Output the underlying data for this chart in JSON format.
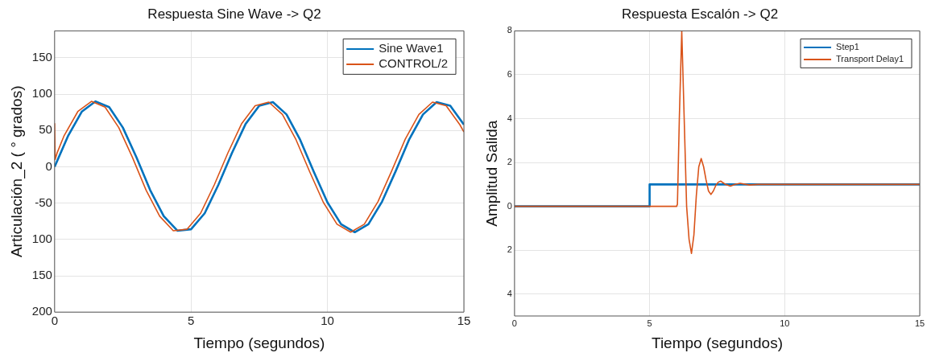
{
  "chart_data": [
    {
      "type": "line",
      "title": "Respuesta Sine Wave -> Q2",
      "xlabel": "Tiempo (segundos)",
      "ylabel": "Articulación_2 ( ° grados)",
      "xlim": [
        0,
        15
      ],
      "xticks": [
        0,
        5,
        10,
        15
      ],
      "ylim": [
        -200,
        187
      ],
      "yticks": [
        {
          "value": -200,
          "label": "200"
        },
        {
          "value": -150,
          "label": "150"
        },
        {
          "value": -100,
          "label": "100"
        },
        -50,
        0,
        50,
        100,
        150
      ],
      "grid": true,
      "legend": "top right",
      "marker": "none",
      "line_style": "solid",
      "series": [
        {
          "name": "Sine Wave1",
          "color": "#0072bd",
          "x": [
            0,
            0.5,
            1,
            1.5,
            2,
            2.5,
            3,
            3.5,
            4,
            4.5,
            5,
            5.5,
            6,
            6.5,
            7,
            7.5,
            8,
            8.5,
            9,
            9.5,
            10,
            10.5,
            11,
            11.5,
            12,
            12.5,
            13,
            13.5,
            14,
            14.5,
            15
          ],
          "values": [
            0,
            43,
            76,
            90,
            82,
            54,
            13,
            -32,
            -68,
            -88,
            -86,
            -64,
            -25,
            19,
            59,
            84,
            89,
            72,
            37,
            -7,
            -49,
            -79,
            -90,
            -79,
            -48,
            -6,
            38,
            72,
            89,
            84,
            58
          ]
        },
        {
          "name": "CONTROL/2",
          "color": "#d95319",
          "x": [
            0,
            0.02,
            0.1,
            0.35,
            0.85,
            1.35,
            1.85,
            2.35,
            2.85,
            3.35,
            3.85,
            4.35,
            4.85,
            5.35,
            5.85,
            6.35,
            6.85,
            7.35,
            7.85,
            8.35,
            8.85,
            9.35,
            9.85,
            10.35,
            10.85,
            11.35,
            11.85,
            12.35,
            12.85,
            13.35,
            13.85,
            14.35,
            14.85,
            15
          ],
          "values": [
            60,
            10,
            20,
            43,
            76,
            90,
            82,
            54,
            13,
            -32,
            -68,
            -88,
            -86,
            -64,
            -25,
            19,
            59,
            84,
            89,
            72,
            37,
            -7,
            -49,
            -79,
            -90,
            -79,
            -48,
            -6,
            38,
            72,
            89,
            84,
            58,
            48
          ]
        }
      ]
    },
    {
      "type": "line",
      "title": "Respuesta Escalón -> Q2",
      "xlabel": "Tiempo (segundos)",
      "ylabel": "Amplitud Salida",
      "xlim": [
        0,
        15
      ],
      "xticks": [
        0,
        5,
        10,
        15
      ],
      "ylim": [
        -5,
        8
      ],
      "yticks": [
        {
          "value": -4,
          "label": "4"
        },
        {
          "value": -2,
          "label": "2"
        },
        0,
        2,
        4,
        6,
        8
      ],
      "grid": true,
      "legend": "top right",
      "marker": "none",
      "line_style": "solid",
      "series": [
        {
          "name": "Step1",
          "color": "#0072bd",
          "x": [
            0,
            5,
            5,
            15
          ],
          "values": [
            0,
            0,
            1,
            1
          ]
        },
        {
          "name": "Transport Delay1",
          "color": "#d95319",
          "x": [
            0,
            6,
            6.03,
            6.1,
            6.19,
            6.28,
            6.37,
            6.46,
            6.55,
            6.64,
            6.73,
            6.82,
            6.91,
            7,
            7.09,
            7.18,
            7.27,
            7.36,
            7.45,
            7.54,
            7.63,
            7.81,
            7.99,
            8.17,
            8.35,
            8.7,
            9,
            15
          ],
          "values": [
            0,
            0,
            0.1,
            4,
            8,
            4,
            0,
            -1.5,
            -2.15,
            -1.3,
            0.5,
            1.8,
            2.18,
            1.8,
            1.2,
            0.7,
            0.54,
            0.7,
            0.95,
            1.1,
            1.15,
            1,
            0.92,
            1,
            1.05,
            0.97,
            1,
            1
          ]
        }
      ]
    }
  ]
}
